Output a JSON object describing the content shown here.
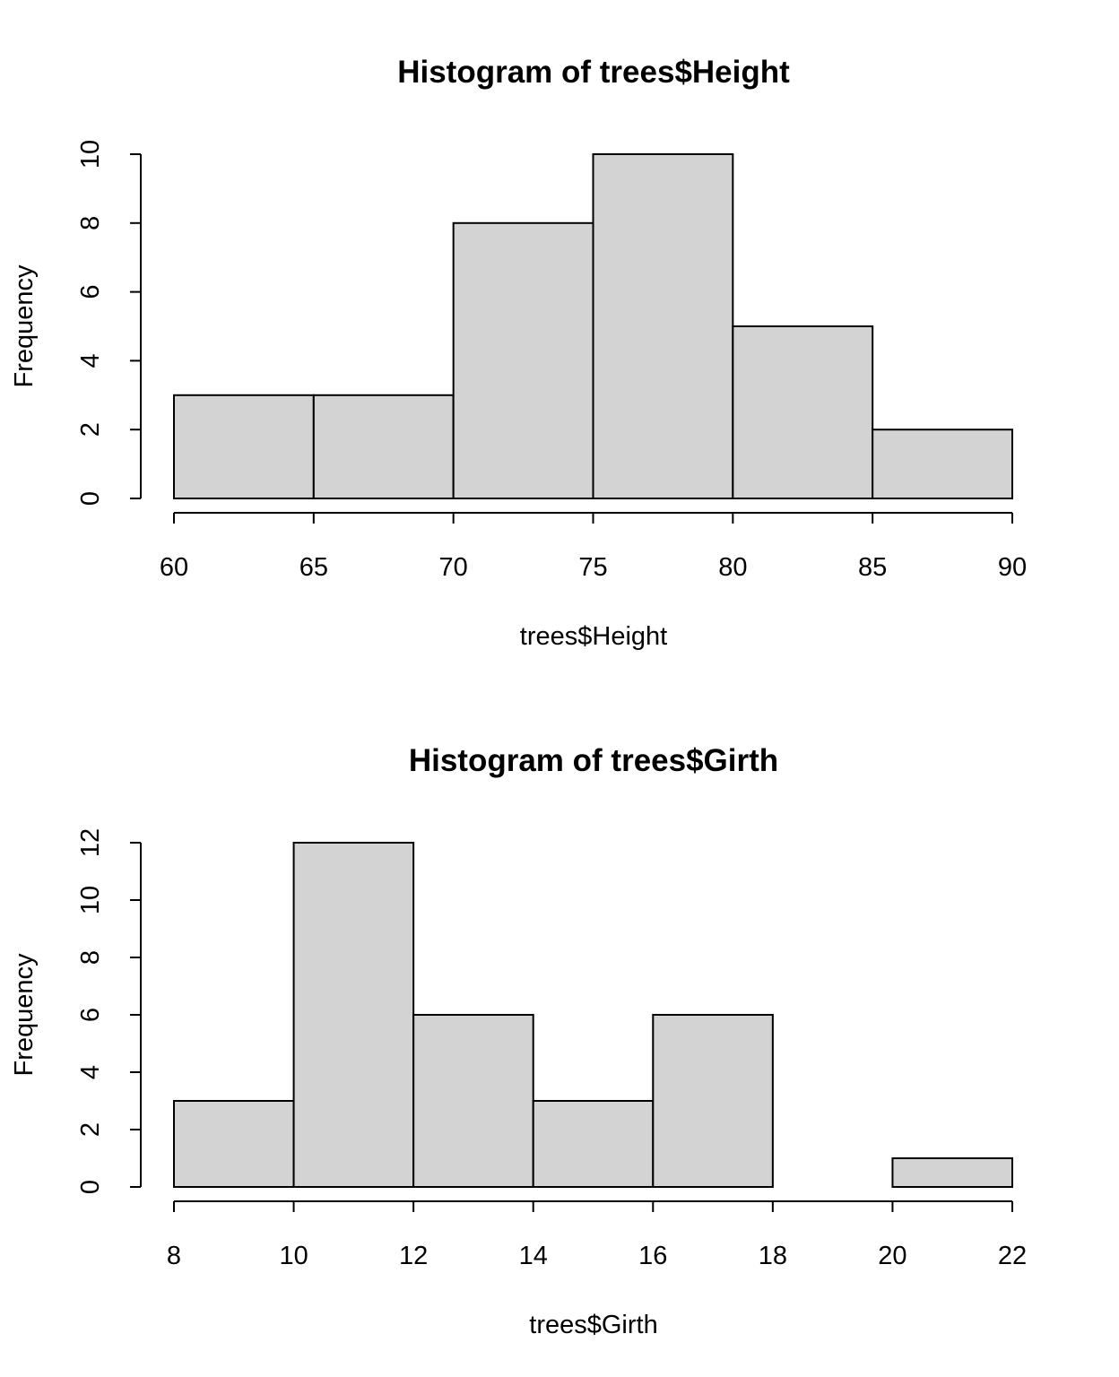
{
  "chart_data": [
    {
      "type": "bar",
      "title": "Histogram of trees$Height",
      "xlabel": "trees$Height",
      "ylabel": "Frequency",
      "bins": [
        {
          "from": 60,
          "to": 65,
          "count": 3
        },
        {
          "from": 65,
          "to": 70,
          "count": 3
        },
        {
          "from": 70,
          "to": 75,
          "count": 8
        },
        {
          "from": 75,
          "to": 80,
          "count": 10
        },
        {
          "from": 80,
          "to": 85,
          "count": 5
        },
        {
          "from": 85,
          "to": 90,
          "count": 2
        }
      ],
      "xlim": [
        60,
        90
      ],
      "ylim": [
        0,
        10
      ],
      "x_ticks": [
        60,
        65,
        70,
        75,
        80,
        85,
        90
      ],
      "y_ticks": [
        0,
        2,
        4,
        6,
        8,
        10
      ],
      "bar_color": "#d3d3d3",
      "grid": false
    },
    {
      "type": "bar",
      "title": "Histogram of trees$Girth",
      "xlabel": "trees$Girth",
      "ylabel": "Frequency",
      "bins": [
        {
          "from": 8,
          "to": 10,
          "count": 3
        },
        {
          "from": 10,
          "to": 12,
          "count": 12
        },
        {
          "from": 12,
          "to": 14,
          "count": 6
        },
        {
          "from": 14,
          "to": 16,
          "count": 3
        },
        {
          "from": 16,
          "to": 18,
          "count": 6
        },
        {
          "from": 18,
          "to": 20,
          "count": 0
        },
        {
          "from": 20,
          "to": 22,
          "count": 1
        }
      ],
      "xlim": [
        8,
        22
      ],
      "ylim": [
        0,
        12
      ],
      "x_ticks": [
        8,
        10,
        12,
        14,
        16,
        18,
        20,
        22
      ],
      "y_ticks": [
        0,
        2,
        4,
        6,
        8,
        10,
        12
      ],
      "bar_color": "#d3d3d3",
      "grid": false
    }
  ]
}
